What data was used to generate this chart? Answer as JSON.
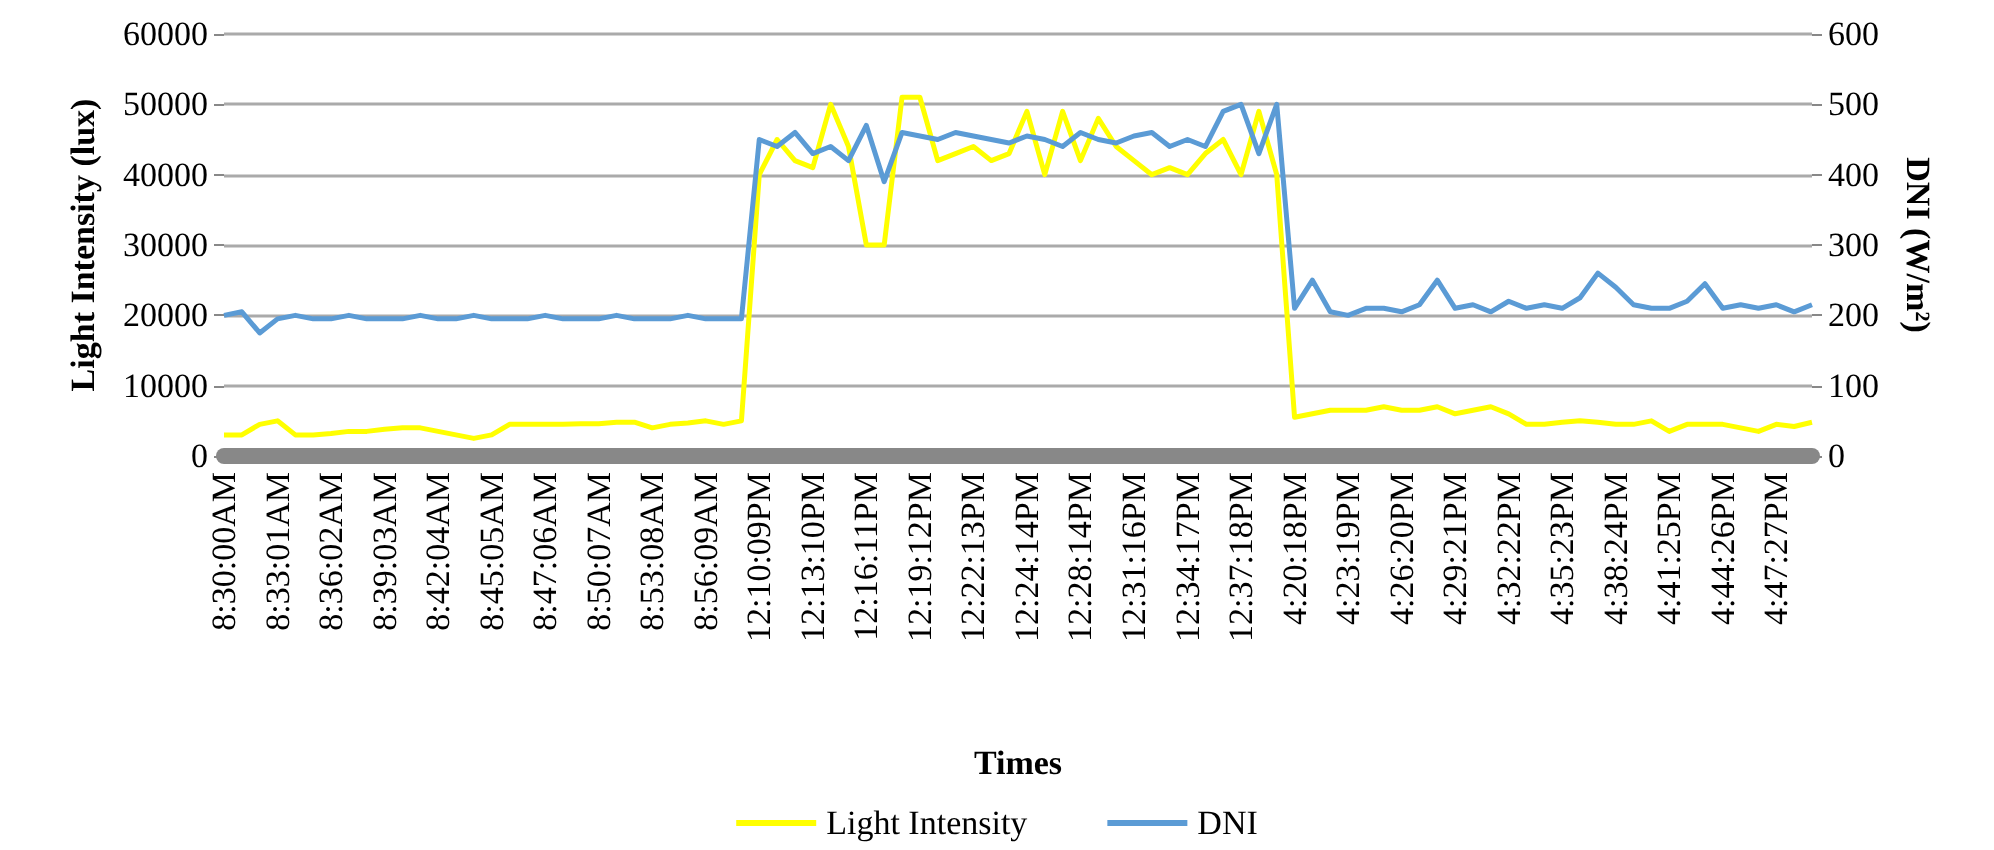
{
  "chart_data": {
    "type": "line",
    "xlabel": "Times",
    "ylabel": "Light Intensity (lux)",
    "y2label": "DNI (W/m²)",
    "categories": [
      "8:30:00AM",
      null,
      null,
      "8:33:01AM",
      null,
      null,
      "8:36:02AM",
      null,
      null,
      "8:39:03AM",
      null,
      null,
      "8:42:04AM",
      null,
      null,
      "8:45:05AM",
      null,
      null,
      "8:47:06AM",
      null,
      null,
      "8:50:07AM",
      null,
      null,
      "8:53:08AM",
      null,
      null,
      "8:56:09AM",
      null,
      null,
      "12:10:09PM",
      null,
      null,
      "12:13:10PM",
      null,
      null,
      "12:16:11PM",
      null,
      null,
      "12:19:12PM",
      null,
      null,
      "12:22:13PM",
      null,
      null,
      "12:24:14PM",
      null,
      null,
      "12:28:14PM",
      null,
      null,
      "12:31:16PM",
      null,
      null,
      "12:34:17PM",
      null,
      null,
      "12:37:18PM",
      null,
      null,
      "4:20:18PM",
      null,
      null,
      "4:23:19PM",
      null,
      null,
      "4:26:20PM",
      null,
      null,
      "4:29:21PM",
      null,
      null,
      "4:32:22PM",
      null,
      null,
      "4:35:23PM",
      null,
      null,
      "4:38:24PM",
      null,
      null,
      "4:41:25PM",
      null,
      null,
      "4:44:26PM",
      null,
      null,
      "4:47:27PM",
      null,
      null
    ],
    "series": [
      {
        "name": "Light Intensity",
        "color": "#ffff00",
        "values": [
          3000,
          3000,
          4500,
          5000,
          3000,
          3000,
          3200,
          3500,
          3500,
          3800,
          4000,
          4000,
          3500,
          3000,
          2500,
          3000,
          4500,
          4500,
          4500,
          4500,
          4600,
          4600,
          4800,
          4800,
          4000,
          4500,
          4700,
          5000,
          4500,
          5000,
          40000,
          45000,
          42000,
          41000,
          50000,
          44000,
          30000,
          30000,
          51000,
          51000,
          42000,
          43000,
          44000,
          42000,
          43000,
          49000,
          40000,
          49000,
          42000,
          48000,
          44000,
          42000,
          40000,
          41000,
          40000,
          43000,
          45000,
          40000,
          49000,
          40000,
          5500,
          6000,
          6500,
          6500,
          6500,
          7000,
          6500,
          6500,
          7000,
          6000,
          6500,
          7000,
          6000,
          4500,
          4500,
          4800,
          5000,
          4800,
          4500,
          4500,
          5000,
          3500,
          4500,
          4500,
          4500,
          4000,
          3500,
          4500,
          4200,
          4800
        ]
      },
      {
        "name": "DNI",
        "color": "#5b9bd5",
        "axis": "y2",
        "values": [
          200,
          205,
          175,
          195,
          200,
          195,
          195,
          200,
          195,
          195,
          195,
          200,
          195,
          195,
          200,
          195,
          195,
          195,
          200,
          195,
          195,
          195,
          200,
          195,
          195,
          195,
          200,
          195,
          195,
          195,
          450,
          440,
          460,
          430,
          440,
          420,
          470,
          390,
          460,
          455,
          450,
          460,
          455,
          450,
          445,
          455,
          450,
          440,
          460,
          450,
          445,
          455,
          460,
          440,
          450,
          440,
          490,
          500,
          430,
          500,
          210,
          250,
          205,
          200,
          210,
          210,
          205,
          215,
          250,
          210,
          215,
          205,
          220,
          210,
          215,
          210,
          225,
          260,
          240,
          215,
          210,
          210,
          220,
          245,
          210,
          215,
          210,
          215,
          205,
          215
        ]
      }
    ],
    "ylim": [
      0,
      60000
    ],
    "yticks": [
      0,
      10000,
      20000,
      30000,
      40000,
      50000,
      60000
    ],
    "y2lim": [
      0,
      600
    ],
    "y2ticks": [
      0,
      100,
      200,
      300,
      400,
      500,
      600
    ],
    "grid": "y",
    "legend": "bottom",
    "marker": "none",
    "line_style": "solid"
  }
}
